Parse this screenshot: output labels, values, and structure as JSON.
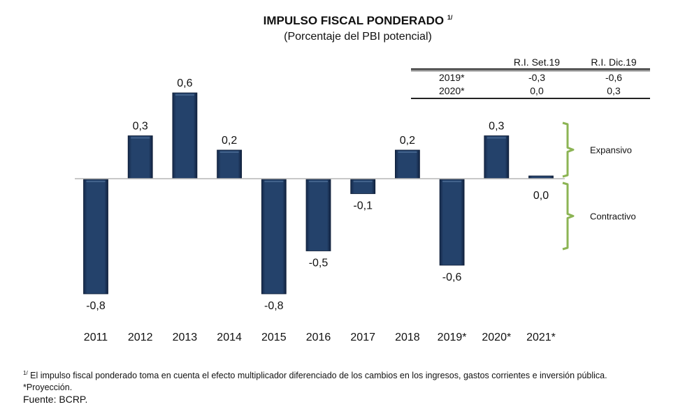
{
  "title": {
    "main": "IMPULSO FISCAL PONDERADO",
    "footnote_mark": "1/",
    "subtitle": "(Porcentaje del PBI potencial)"
  },
  "revision_table": {
    "headers": [
      "",
      "R.I. Set.19",
      "R.I. Dic.19"
    ],
    "rows": [
      {
        "year": "2019*",
        "set19": "-0,3",
        "dic19": "-0,6"
      },
      {
        "year": "2020*",
        "set19": "0,0",
        "dic19": "0,3"
      }
    ]
  },
  "chart_data": {
    "type": "bar",
    "title": "IMPULSO FISCAL PONDERADO 1/",
    "subtitle": "(Porcentaje del PBI potencial)",
    "xlabel": "",
    "ylabel": "",
    "categories": [
      "2011",
      "2012",
      "2013",
      "2014",
      "2015",
      "2016",
      "2017",
      "2018",
      "2019*",
      "2020*",
      "2021*"
    ],
    "values": [
      -0.8,
      0.3,
      0.6,
      0.2,
      -0.8,
      -0.5,
      -0.1,
      0.2,
      -0.6,
      0.3,
      0.0
    ],
    "value_labels": [
      "-0,8",
      "0,3",
      "0,6",
      "0,2",
      "-0,8",
      "-0,5",
      "-0,1",
      "0,2",
      "-0,6",
      "0,3",
      "0,0"
    ],
    "ylim": [
      -0.9,
      0.7
    ],
    "grid": false,
    "y_axis_visible": false,
    "annotations": [
      {
        "text": "Expansivo",
        "type": "bracket",
        "range": "positive"
      },
      {
        "text": "Contractivo",
        "type": "bracket",
        "range": "negative"
      }
    ],
    "colors": {
      "bar": "#1f3a5f",
      "bar_highlight": "#4a6a94",
      "bracket": "#8cb454",
      "baseline": "#b0b0b0"
    }
  },
  "notes": {
    "footnote_mark": "1/",
    "footnote": "El impulso fiscal ponderado toma en cuenta el efecto multiplicador diferenciado de los cambios en los ingresos, gastos corrientes e inversión pública.",
    "projection": "*Proyección.",
    "source": "Fuente: BCRP."
  }
}
